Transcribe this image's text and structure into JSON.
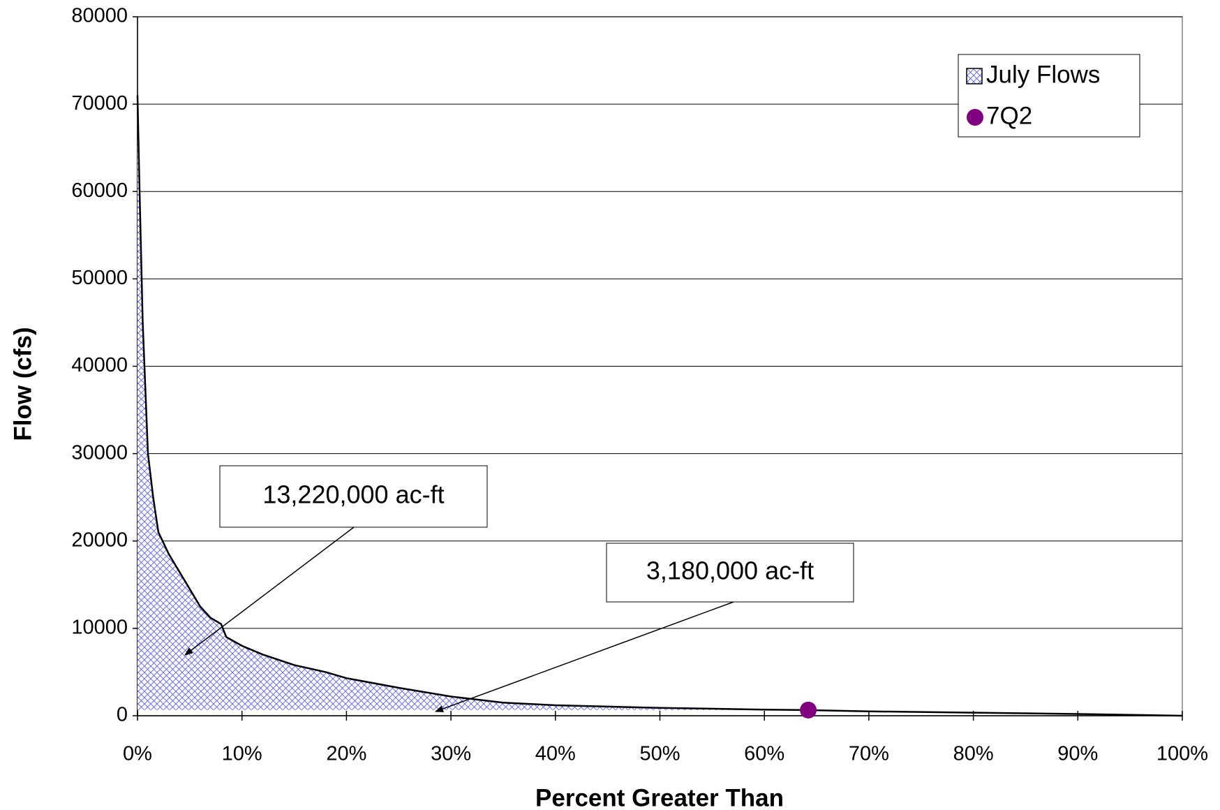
{
  "chart_data": {
    "type": "area",
    "x_label": "Percent Greater Than",
    "y_label": "Flow (cfs)",
    "xlim": [
      0,
      100
    ],
    "ylim": [
      0,
      80000
    ],
    "xticks": [
      {
        "value": 0,
        "label": "0%"
      },
      {
        "value": 10,
        "label": "10%"
      },
      {
        "value": 20,
        "label": "20%"
      },
      {
        "value": 30,
        "label": "30%"
      },
      {
        "value": 40,
        "label": "40%"
      },
      {
        "value": 50,
        "label": "50%"
      },
      {
        "value": 60,
        "label": "60%"
      },
      {
        "value": 70,
        "label": "70%"
      },
      {
        "value": 80,
        "label": "80%"
      },
      {
        "value": 90,
        "label": "90%"
      },
      {
        "value": 100,
        "label": "100%"
      }
    ],
    "yticks": [
      0,
      10000,
      20000,
      30000,
      40000,
      50000,
      60000,
      70000,
      80000
    ],
    "grid": true,
    "legend": "upper right",
    "series": [
      {
        "name": "July Flows",
        "type": "area",
        "color": "#5a5aff",
        "x": [
          0,
          0.2,
          0.5,
          1,
          1.5,
          2,
          3,
          4,
          5,
          6,
          7,
          8,
          8.5,
          10,
          12,
          15,
          18,
          20,
          25,
          30,
          35,
          40,
          50,
          60,
          64,
          70,
          80,
          90,
          100
        ],
        "values": [
          71000,
          60000,
          45000,
          30000,
          25000,
          21000,
          18500,
          16500,
          14500,
          12500,
          11200,
          10500,
          9000,
          8000,
          7000,
          5800,
          5000,
          4300,
          3200,
          2200,
          1500,
          1200,
          900,
          700,
          650,
          500,
          350,
          200,
          0
        ]
      },
      {
        "name": "7Q2",
        "type": "scatter",
        "color": "#800080",
        "x": [
          64.2
        ],
        "values": [
          650
        ]
      }
    ],
    "annotations": [
      {
        "text": "13,220,000 ac-ft"
      },
      {
        "text": "3,180,000 ac-ft"
      }
    ]
  }
}
